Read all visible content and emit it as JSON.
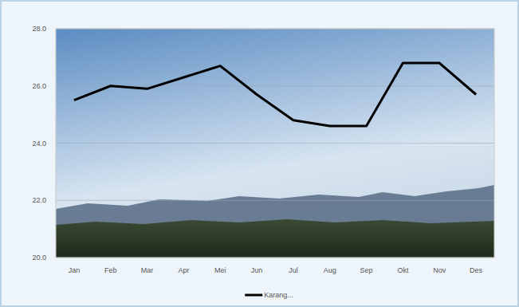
{
  "chart_data": {
    "type": "line",
    "categories": [
      "Jan",
      "Feb",
      "Mar",
      "Apr",
      "Mei",
      "Jun",
      "Jul",
      "Aug",
      "Sep",
      "Okt",
      "Nov",
      "Des"
    ],
    "series": [
      {
        "name": "Karang...",
        "color": "#000000",
        "values": [
          25.5,
          26.0,
          25.9,
          26.3,
          26.7,
          25.7,
          24.8,
          24.6,
          24.6,
          26.8,
          26.8,
          25.7
        ]
      }
    ],
    "ylim": [
      20,
      28
    ],
    "yticks": [
      {
        "value": 20,
        "label": "20.0"
      },
      {
        "value": 22,
        "label": "22.0"
      },
      {
        "value": 24,
        "label": "24.0"
      },
      {
        "value": 26,
        "label": "26.0"
      },
      {
        "value": 28,
        "label": "28.0"
      }
    ],
    "grid": true,
    "legend": "bottom"
  }
}
